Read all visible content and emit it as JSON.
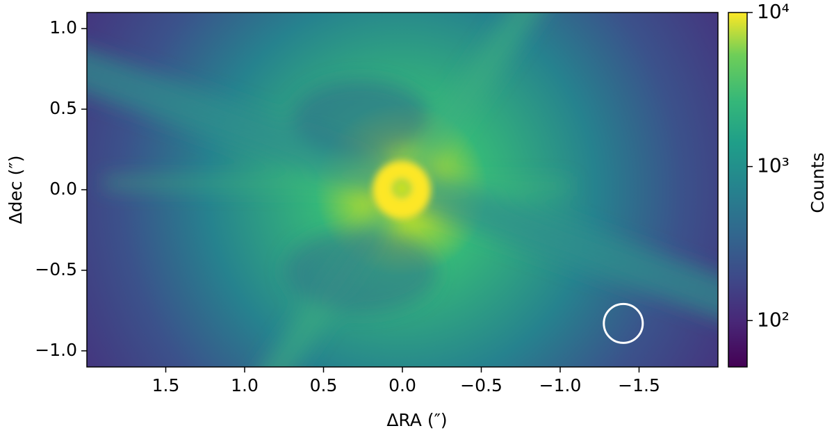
{
  "chart_data": {
    "type": "image",
    "xlabel": "ΔRA (″)",
    "ylabel": "Δdec (″)",
    "xlim": [
      2.0,
      -2.0
    ],
    "ylim": [
      -1.1,
      1.1
    ],
    "xticks": [
      1.5,
      {
        "value": 1.0,
        "label": "1.0"
      },
      0.5,
      {
        "value": 0.0,
        "label": "0.0"
      },
      {
        "value": -0.5,
        "label": "−0.5"
      },
      {
        "value": -1.0,
        "label": "−1.0"
      },
      {
        "value": -1.5,
        "label": "−1.5"
      }
    ],
    "yticks": [
      {
        "value": -1.0,
        "label": "−1.0"
      },
      {
        "value": -0.5,
        "label": "−0.5"
      },
      {
        "value": 0.0,
        "label": "0.0"
      },
      0.5,
      {
        "value": 1.0,
        "label": "1.0"
      }
    ],
    "colorbar": {
      "label": "Counts",
      "scale": "log",
      "clim": [
        50,
        10000
      ],
      "ticks": [
        {
          "value": 100,
          "label": "10²"
        },
        {
          "value": 1000,
          "label": "10³"
        },
        {
          "value": 10000,
          "label": "10⁴"
        }
      ]
    },
    "circle": {
      "x": -1.4,
      "y": -0.83,
      "color": "#ffffff"
    }
  }
}
